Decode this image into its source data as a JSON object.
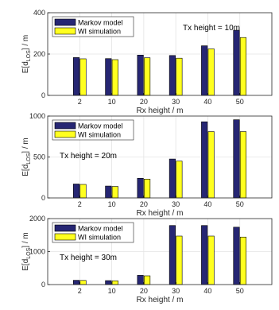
{
  "colors": {
    "markov": "#262673",
    "wi": "#ffff1f",
    "grid": "#e4e4e4",
    "axis": "#262626"
  },
  "chart_data": [
    {
      "type": "bar",
      "categories": [
        "2",
        "10",
        "20",
        "30",
        "40",
        "50"
      ],
      "series": [
        {
          "name": "Markov model",
          "values": [
            183,
            178,
            195,
            193,
            240,
            315
          ]
        },
        {
          "name": "WI simulation",
          "values": [
            177,
            173,
            182,
            180,
            225,
            280
          ]
        }
      ],
      "annotation": "Tx height = 10m",
      "xlabel": "Rx height / m",
      "ylabel": "E[d_LOS] / m",
      "ylabel_main": "E[d",
      "ylabel_sub": "LOS",
      "ylabel_tail": "] / m",
      "ylim": [
        0,
        400
      ],
      "yticks": [
        0,
        200,
        400
      ],
      "grid": true,
      "legend": "top-left"
    },
    {
      "type": "bar",
      "categories": [
        "2",
        "10",
        "20",
        "30",
        "40",
        "50"
      ],
      "series": [
        {
          "name": "Markov model",
          "values": [
            170,
            145,
            240,
            475,
            930,
            955
          ]
        },
        {
          "name": "WI simulation",
          "values": [
            165,
            140,
            230,
            450,
            810,
            810
          ]
        }
      ],
      "annotation": "Tx height = 20m",
      "xlabel": "Rx height / m",
      "ylabel": "E[d_LOS] / m",
      "ylabel_main": "E[d",
      "ylabel_sub": "LOS",
      "ylabel_tail": "] / m",
      "ylim": [
        0,
        1000
      ],
      "yticks": [
        0,
        500,
        1000
      ],
      "grid": true,
      "legend": "top-left"
    },
    {
      "type": "bar",
      "categories": [
        "2",
        "10",
        "20",
        "30",
        "40",
        "50"
      ],
      "series": [
        {
          "name": "Markov model",
          "values": [
            130,
            120,
            280,
            1790,
            1790,
            1740
          ]
        },
        {
          "name": "WI simulation",
          "values": [
            125,
            115,
            265,
            1470,
            1470,
            1440
          ]
        }
      ],
      "annotation": "Tx height = 30m",
      "xlabel": "Rx height / m",
      "ylabel": "E[d_LOS] / m",
      "ylabel_main": "E[d",
      "ylabel_sub": "LOS",
      "ylabel_tail": "] / m",
      "ylim": [
        0,
        2000
      ],
      "yticks": [
        0,
        1000,
        2000
      ],
      "grid": true,
      "legend": "top-left"
    }
  ]
}
